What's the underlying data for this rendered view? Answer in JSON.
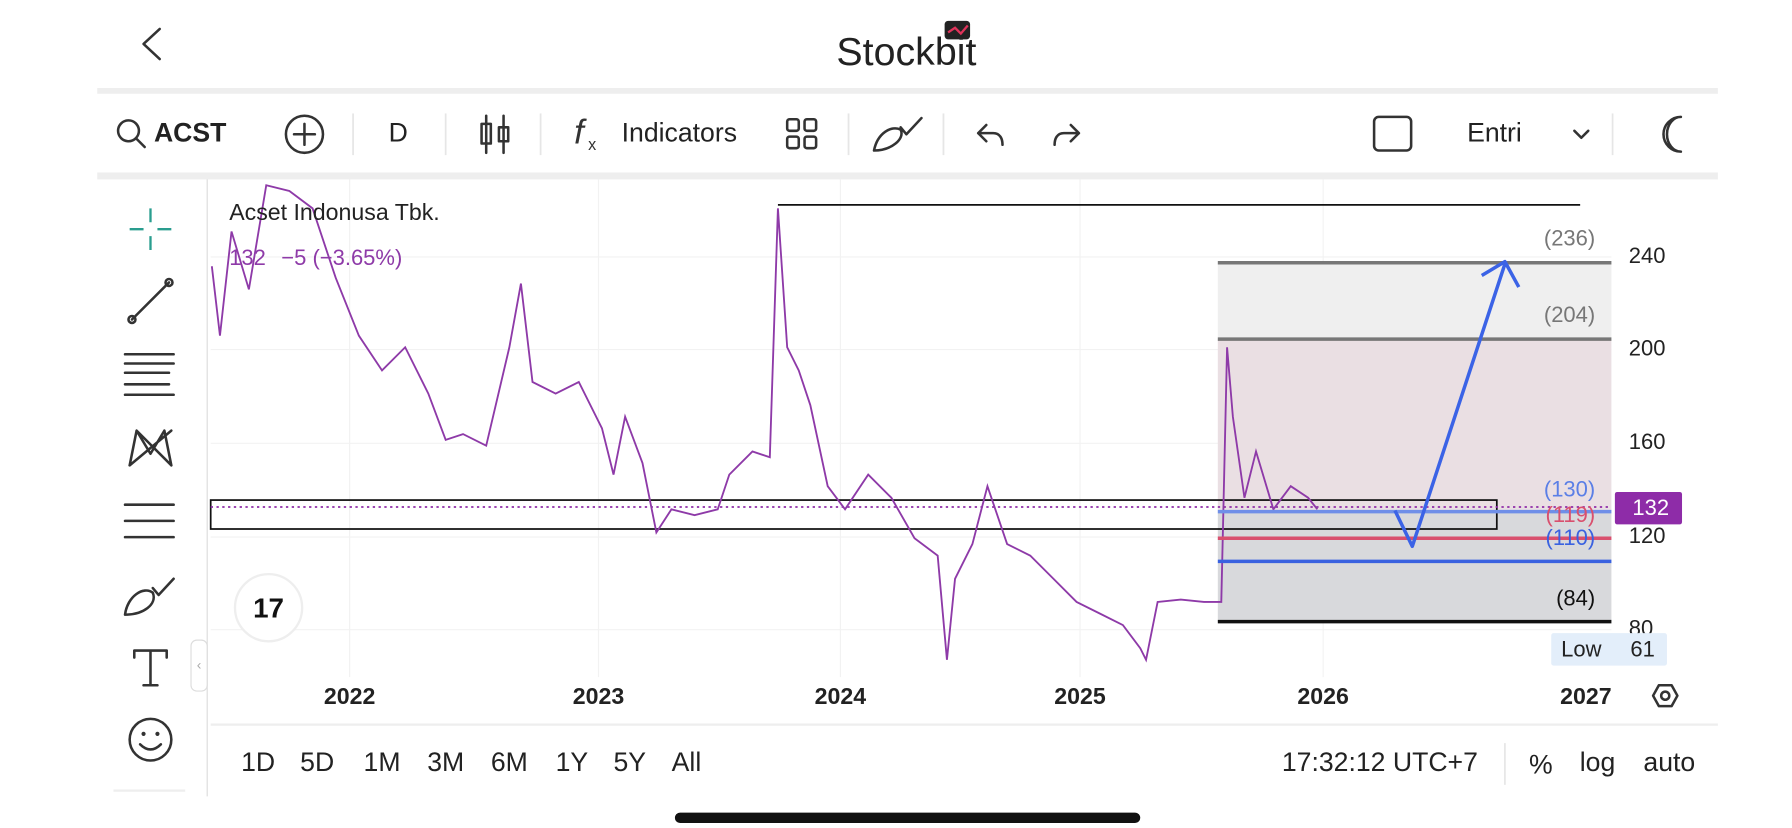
{
  "header": {
    "title": "Stockbit"
  },
  "toolbar": {
    "symbol": "ACST",
    "interval": "D",
    "indicators": "Indicators",
    "layout": "Entri"
  },
  "chart": {
    "title": "Acset Indonusa Tbk.",
    "last": "132",
    "change": "−5 (−3.65%)",
    "price_ticks": [
      "240",
      "200",
      "160",
      "120",
      "80"
    ],
    "years": [
      "2022",
      "2023",
      "2024",
      "2025",
      "2026",
      "2027"
    ],
    "levels": [
      "(236)",
      "(204)",
      "(130)",
      "(119)",
      "(110)",
      "(84)"
    ],
    "price_badge": "132",
    "low_label": "Low",
    "low_value": "61"
  },
  "footer": {
    "ranges": [
      "1D",
      "5D",
      "1M",
      "3M",
      "6M",
      "1Y",
      "5Y",
      "All"
    ],
    "time": "17:32:12 UTC+7",
    "options": [
      "%",
      "log",
      "auto"
    ]
  }
}
